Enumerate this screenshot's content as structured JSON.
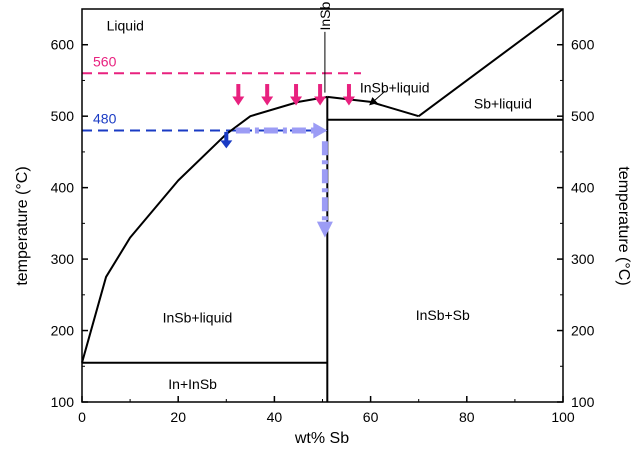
{
  "chart_data": {
    "type": "line",
    "xlabel": "wt% Sb",
    "ylabel_left": "temperature (°C)",
    "ylabel_right": "temperature (°C)",
    "xlim": [
      0,
      100
    ],
    "ylim": [
      100,
      650
    ],
    "xticks": [
      0,
      20,
      40,
      60,
      80,
      100
    ],
    "yticks": [
      100,
      200,
      300,
      400,
      500,
      600
    ],
    "grid": false,
    "colors": {
      "line": "#000000",
      "pink": "#e8217f",
      "blue": "#1a3bc4",
      "lavender": "#9c9cf5"
    },
    "series": [
      {
        "role": "liquidus-left",
        "x": [
          0,
          5,
          10,
          20,
          30,
          35,
          45,
          51
        ],
        "y": [
          155,
          275,
          330,
          410,
          475,
          500,
          520,
          527
        ]
      },
      {
        "role": "liquidus-mid",
        "x": [
          51,
          60,
          70
        ],
        "y": [
          527,
          520,
          500
        ]
      },
      {
        "role": "liquidus-right",
        "x": [
          70,
          75,
          100
        ],
        "y": [
          500,
          525,
          650
        ]
      },
      {
        "role": "eutectic-left",
        "x": [
          0,
          51
        ],
        "y": [
          155,
          155
        ]
      },
      {
        "role": "eutectic-right",
        "x": [
          51,
          100
        ],
        "y": [
          495,
          495
        ]
      },
      {
        "role": "compound-line",
        "x": [
          51,
          51
        ],
        "y": [
          100,
          527
        ]
      }
    ],
    "isotherms": [
      {
        "label": "560",
        "y": 560,
        "x_end": 58,
        "color": "#e8217f"
      },
      {
        "label": "480",
        "y": 480,
        "x_end": 51,
        "color": "#1a3bc4"
      }
    ],
    "pink_arrows_x": [
      32.5,
      38.5,
      44.5,
      49.5,
      55.5
    ],
    "pink_arrows_y": [
      545,
      515
    ],
    "blue_arrow": {
      "x": 30,
      "y_from": 478,
      "y_to": 455
    },
    "lavender_dash": {
      "x_from": 32,
      "x_to": 51,
      "y": 480
    },
    "lavender_down": {
      "x": 50.5,
      "y_from": 465,
      "y_to": 330
    },
    "regions": [
      {
        "text": "Liquid",
        "x": 9,
        "y": 627
      },
      {
        "text": "InSb+liquid",
        "x": 65,
        "y": 540
      },
      {
        "text": "Sb+liquid",
        "x": 87.5,
        "y": 518
      },
      {
        "text": "InSb+liquid",
        "x": 24,
        "y": 218
      },
      {
        "text": "InSb+Sb",
        "x": 75,
        "y": 222
      },
      {
        "text": "In+InSb",
        "x": 23,
        "y": 125
      }
    ],
    "annotations": [
      {
        "text": "InSb",
        "x": 50.5,
        "y": 640
      }
    ],
    "callout_arrow": {
      "x_from": 63,
      "y_from": 535,
      "x_to": 60,
      "y_to": 517
    }
  }
}
